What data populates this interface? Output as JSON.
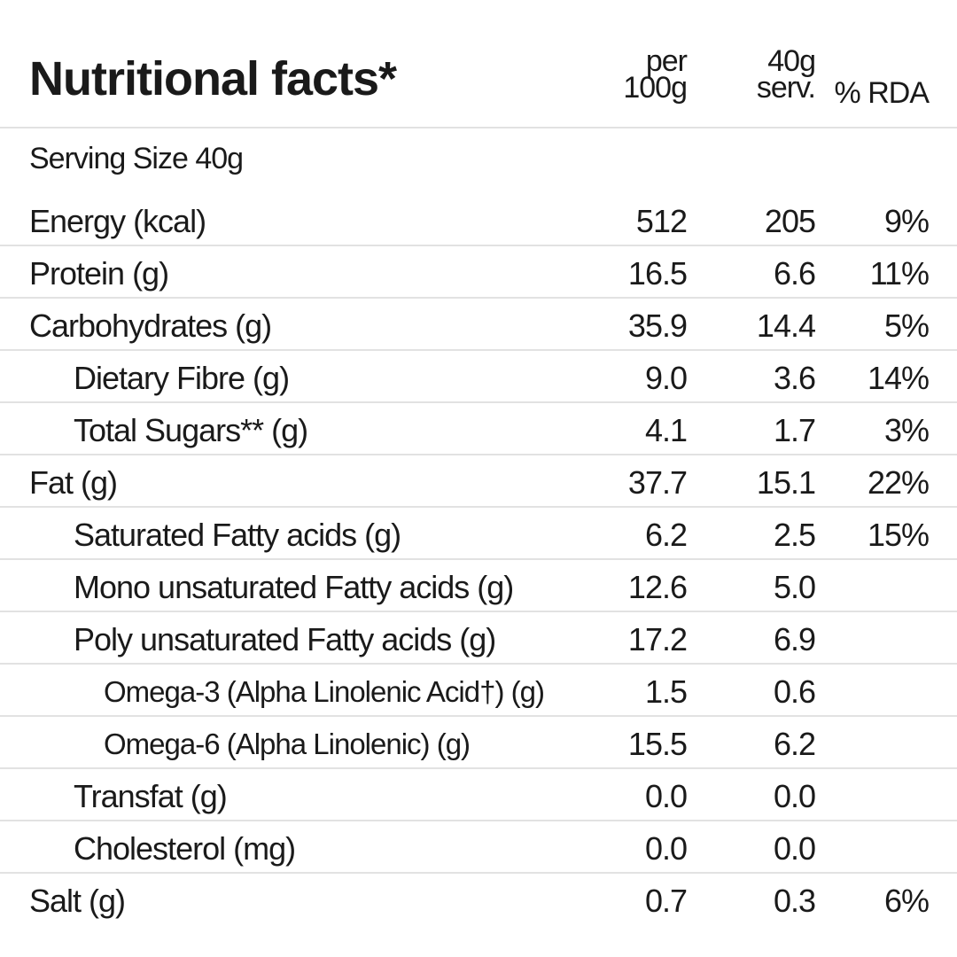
{
  "title": "Nutritional facts*",
  "columns": {
    "per100_line1": "per",
    "per100_line2": "100g",
    "serv_line1": "40g",
    "serv_line2": "serv.",
    "rda": "% RDA"
  },
  "serving_size": "Serving Size 40g",
  "rows": [
    {
      "label": "Energy (kcal)",
      "per100": "512",
      "serv": "205",
      "rda": "9%",
      "indent": 0
    },
    {
      "label": "Protein (g)",
      "per100": "16.5",
      "serv": "6.6",
      "rda": "11%",
      "indent": 0
    },
    {
      "label": "Carbohydrates (g)",
      "per100": "35.9",
      "serv": "14.4",
      "rda": "5%",
      "indent": 0
    },
    {
      "label": "Dietary Fibre (g)",
      "per100": "9.0",
      "serv": "3.6",
      "rda": "14%",
      "indent": 1
    },
    {
      "label": "Total Sugars** (g)",
      "per100": "4.1",
      "serv": "1.7",
      "rda": "3%",
      "indent": 1
    },
    {
      "label": "Fat (g)",
      "per100": "37.7",
      "serv": "15.1",
      "rda": "22%",
      "indent": 0
    },
    {
      "label": "Saturated Fatty acids (g)",
      "per100": "6.2",
      "serv": "2.5",
      "rda": "15%",
      "indent": 1
    },
    {
      "label": "Mono unsaturated Fatty acids (g)",
      "per100": "12.6",
      "serv": "5.0",
      "rda": "",
      "indent": 1
    },
    {
      "label": "Poly unsaturated Fatty acids (g)",
      "per100": "17.2",
      "serv": "6.9",
      "rda": "",
      "indent": 1
    },
    {
      "label": "Omega-3 (Alpha Linolenic Acid†) (g)",
      "per100": "1.5",
      "serv": "0.6",
      "rda": "",
      "indent": 2
    },
    {
      "label": "Omega-6 (Alpha Linolenic) (g)",
      "per100": "15.5",
      "serv": "6.2",
      "rda": "",
      "indent": 2
    },
    {
      "label": "Transfat (g)",
      "per100": "0.0",
      "serv": "0.0",
      "rda": "",
      "indent": 1
    },
    {
      "label": "Cholesterol (mg)",
      "per100": "0.0",
      "serv": "0.0",
      "rda": "",
      "indent": 1
    },
    {
      "label": "Salt (g)",
      "per100": "0.7",
      "serv": "0.3",
      "rda": "6%",
      "indent": 0
    }
  ]
}
